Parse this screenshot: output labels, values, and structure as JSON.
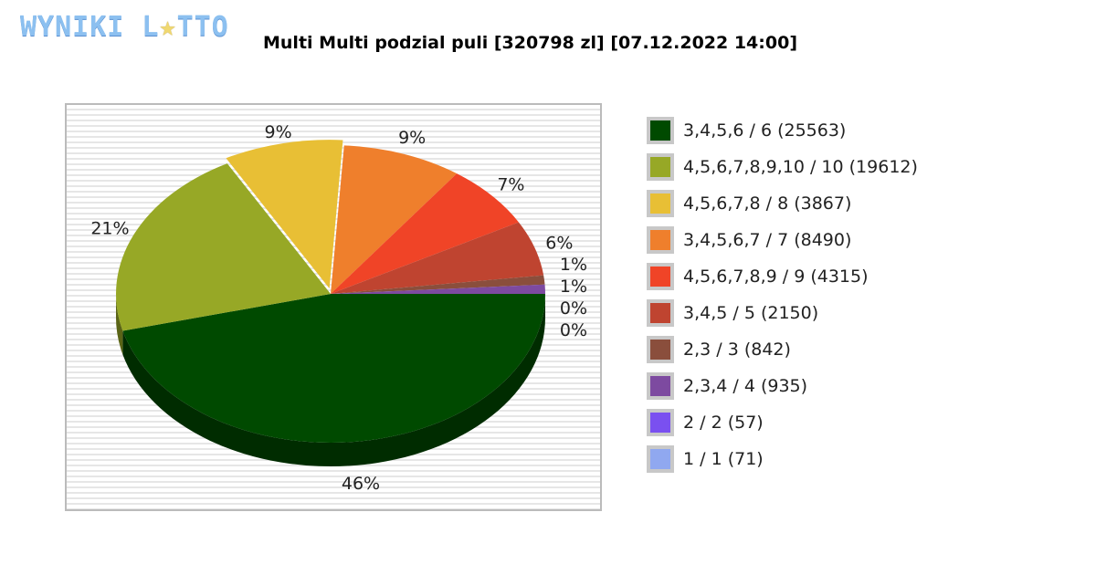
{
  "logo_text": "WYNIKI LOTTO",
  "chart_data": {
    "type": "pie",
    "title": "Multi Multi podzial puli [320798 zl] [07.12.2022 14:00]",
    "legend_position": "right",
    "categories": [
      "3,4,5,6 / 6 (25563)",
      "4,5,6,7,8,9,10 / 10 (19612)",
      "4,5,6,7,8 / 8 (3867)",
      "3,4,5,6,7 / 7 (8490)",
      "4,5,6,7,8,9 / 9 (4315)",
      "3,4,5 / 5 (2150)",
      "2,3 / 3 (842)",
      "2,3,4 / 4 (935)",
      "2 / 2 (57)",
      "1 / 1 (71)"
    ],
    "values": [
      46,
      21,
      9,
      9,
      7,
      6,
      1,
      1,
      0,
      0
    ],
    "labels": [
      "46%",
      "21%",
      "9%",
      "9%",
      "7%",
      "6%",
      "1%",
      "1%",
      "0%",
      "0%"
    ],
    "colors": [
      "#004a00",
      "#97a826",
      "#e8bf35",
      "#ef7f2c",
      "#f04427",
      "#bf4430",
      "#8a4e3c",
      "#7d4aa0",
      "#7a50f0",
      "#90a8f0"
    ]
  }
}
